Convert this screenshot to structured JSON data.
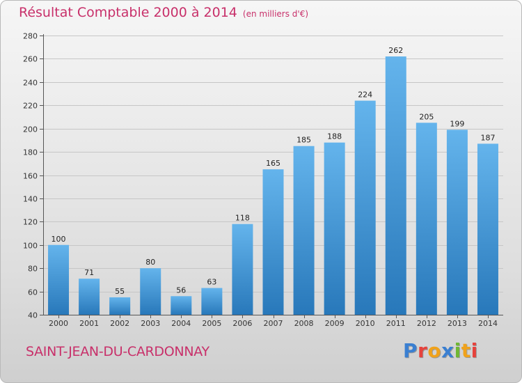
{
  "header": {
    "title": "Résultat Comptable 2000 à 2014",
    "subtitle": "(en milliers d'€)"
  },
  "footer": {
    "city": "SAINT-JEAN-DU-CARDONNAY",
    "logo": "Proxiti",
    "logo_colors": [
      "#3a7fd1",
      "#e6423c",
      "#f0a21b",
      "#3a7fd1",
      "#6fb733",
      "#f0a21b",
      "#e6423c"
    ]
  },
  "colors": {
    "title": "#c8306a",
    "bar_light": "#64b4ec",
    "bar_dark": "#2878ba"
  },
  "chart_data": {
    "type": "bar",
    "categories": [
      "2000",
      "2001",
      "2002",
      "2003",
      "2004",
      "2005",
      "2006",
      "2007",
      "2008",
      "2009",
      "2010",
      "2011",
      "2012",
      "2013",
      "2014"
    ],
    "values": [
      100,
      71,
      55,
      80,
      56,
      63,
      118,
      165,
      185,
      188,
      224,
      262,
      205,
      199,
      187
    ],
    "ylim": [
      40,
      280
    ],
    "yticks": [
      40,
      60,
      80,
      100,
      120,
      140,
      160,
      180,
      200,
      220,
      240,
      260,
      280
    ],
    "grid": true,
    "xlabel": "",
    "ylabel": ""
  }
}
